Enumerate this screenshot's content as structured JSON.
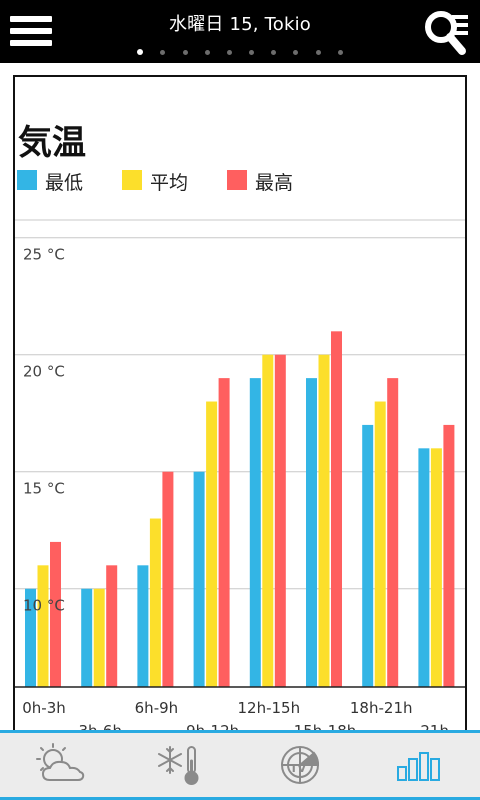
{
  "header": {
    "title": "水曜日 15, Tokio",
    "page_count": 10,
    "active_page": 0,
    "menu_icon": "hamburger-menu-icon",
    "search_icon": "search-list-icon"
  },
  "chart_data": {
    "type": "bar",
    "title": "気温",
    "categories": [
      "0h-3h",
      "3h-6h",
      "6h-9h",
      "9h-12h",
      "12h-15h",
      "15h-18h",
      "18h-21h",
      "21h-"
    ],
    "series": [
      {
        "name": "最低",
        "color": "#33b5e5",
        "values": [
          10,
          10,
          11,
          15,
          19,
          19,
          17,
          16
        ]
      },
      {
        "name": "平均",
        "color": "#fcdf2b",
        "values": [
          11,
          10,
          13,
          18,
          20,
          20,
          18,
          16
        ]
      },
      {
        "name": "最高",
        "color": "#ff5f5f",
        "values": [
          12,
          11,
          15,
          19,
          20,
          21,
          19,
          17
        ]
      }
    ],
    "y_ticks": [
      "10 °C",
      "15 °C",
      "20 °C",
      "25 °C"
    ],
    "y_tick_values": [
      10,
      15,
      20,
      25
    ],
    "ylim": [
      5.8,
      27
    ],
    "grid": true,
    "legend_position": "top-left",
    "xlabel": "",
    "ylabel": ""
  },
  "tabbar": {
    "accent": "#29aae1",
    "tabs": [
      {
        "icon": "cloudy-sun-icon",
        "active": false
      },
      {
        "icon": "snow-thermometer-icon",
        "active": false
      },
      {
        "icon": "tv-radar-icon",
        "active": false
      },
      {
        "icon": "bar-chart-icon",
        "active": true
      }
    ]
  }
}
